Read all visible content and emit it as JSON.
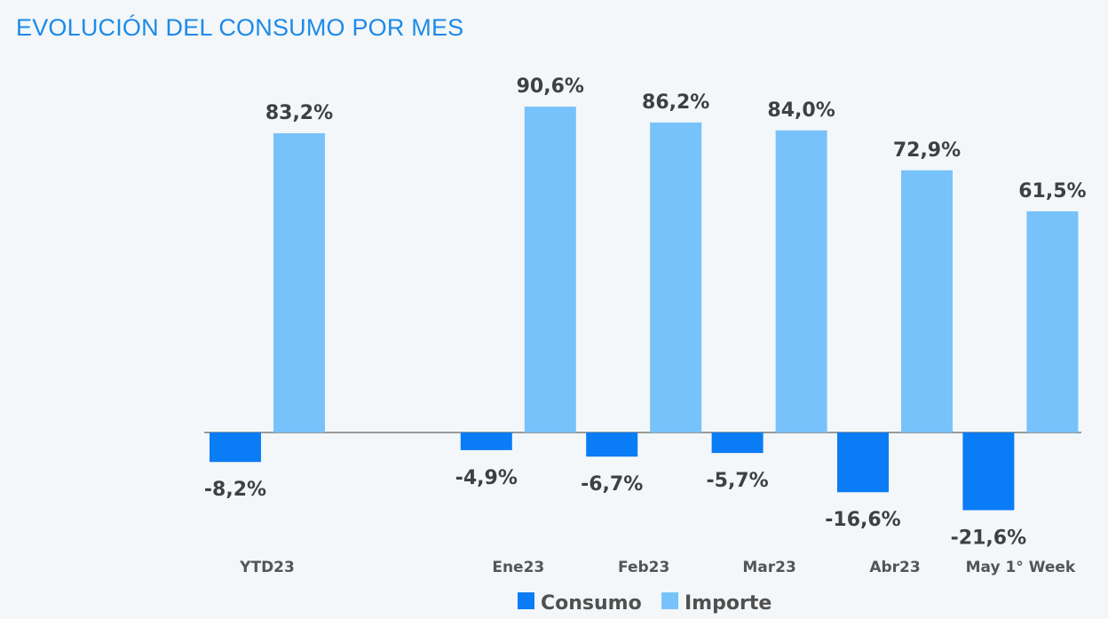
{
  "chart_data": {
    "type": "bar",
    "title": "EVOLUCIÓN DEL CONSUMO POR MES",
    "categories": [
      "YTD23",
      "Ene23",
      "Feb23",
      "Mar23",
      "Abr23",
      "May 1° Week"
    ],
    "series": [
      {
        "name": "Consumo",
        "color": "#0a7cf5",
        "values": [
          -8.2,
          -4.9,
          -6.7,
          -5.7,
          -16.6,
          -21.6
        ],
        "labels": [
          "-8,2%",
          "-4,9%",
          "-6,7%",
          "-5,7%",
          "-16,6%",
          "-21,6%"
        ]
      },
      {
        "name": "Importe",
        "color": "#78c2fb",
        "values": [
          83.2,
          90.6,
          86.2,
          84.0,
          72.9,
          61.5
        ],
        "labels": [
          "83,2%",
          "90,6%",
          "86,2%",
          "84,0%",
          "72,9%",
          "61,5%"
        ]
      }
    ],
    "legend": "bottom",
    "grid": false,
    "ylim": [
      -25,
      95
    ]
  }
}
